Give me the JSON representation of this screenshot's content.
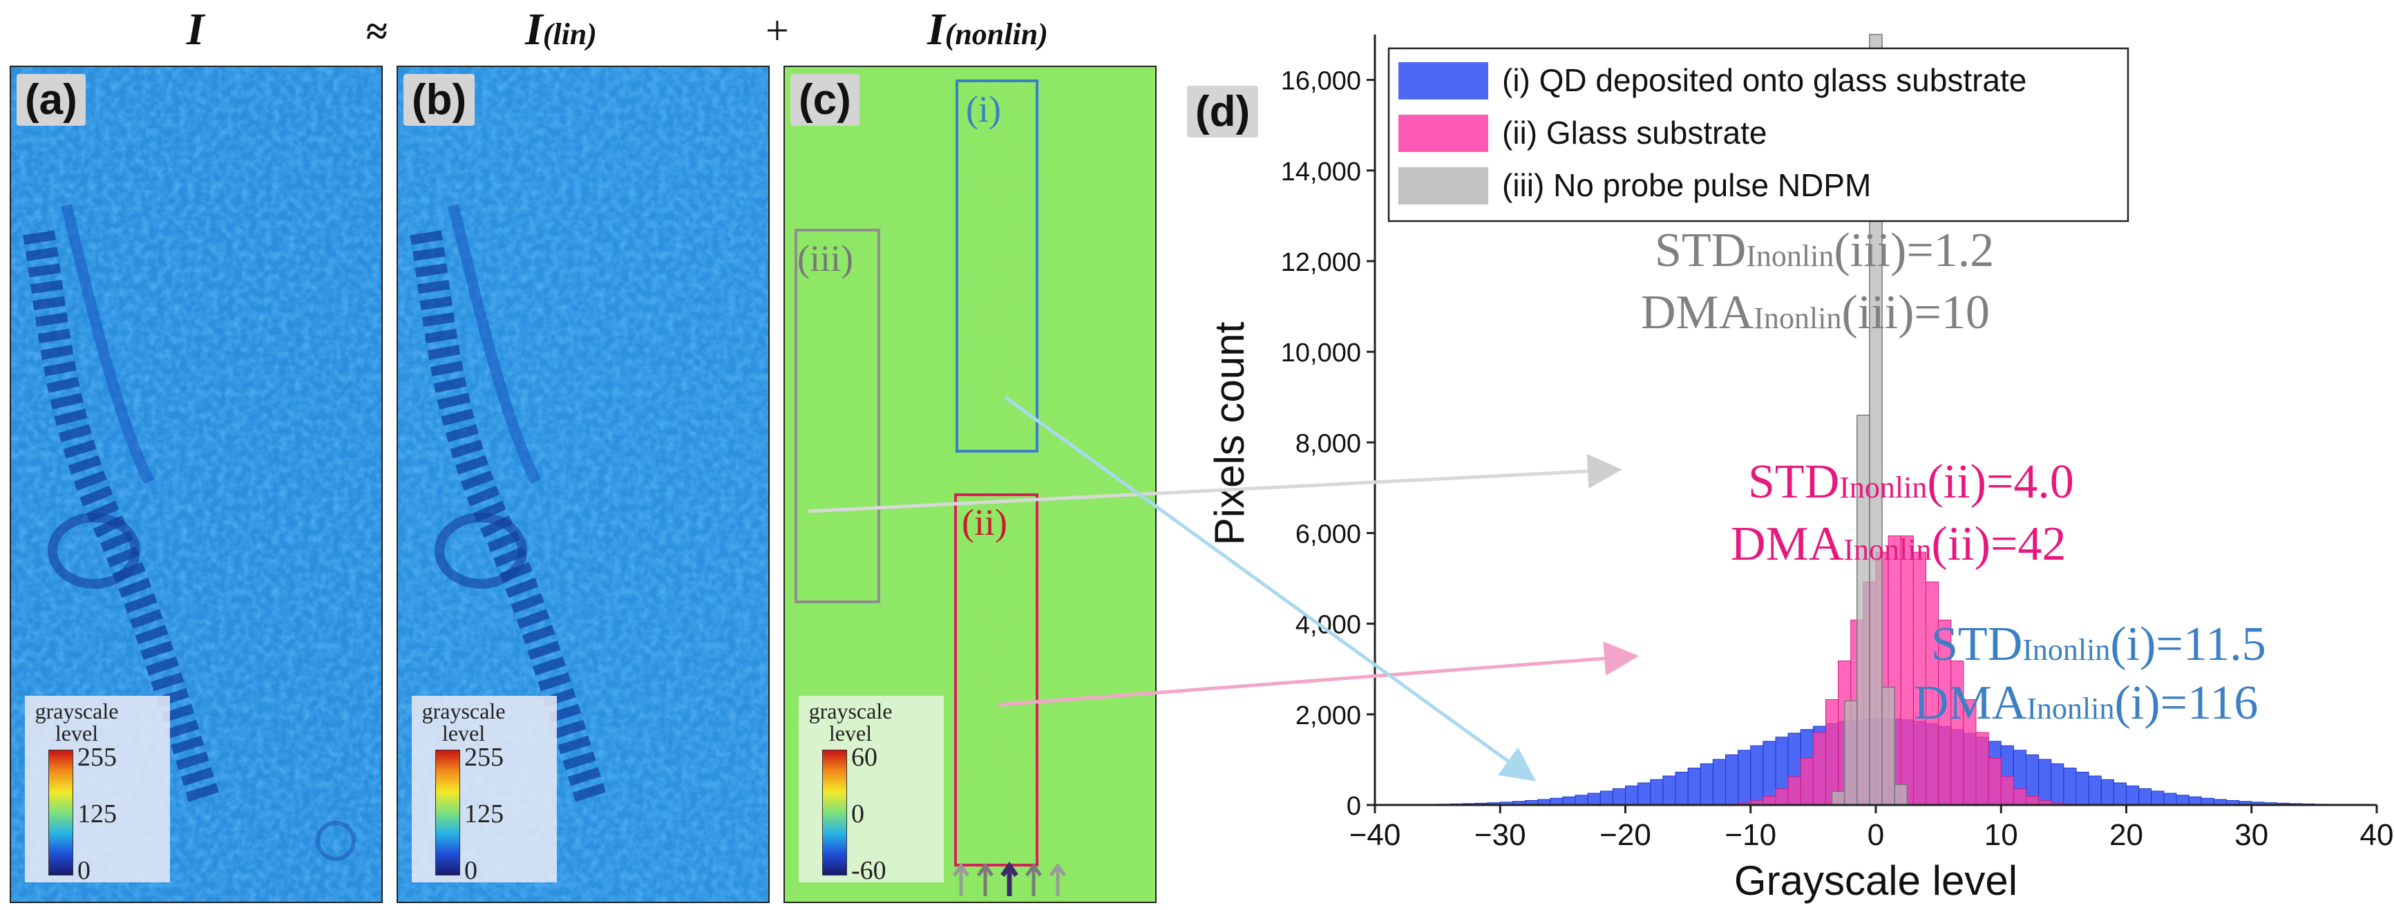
{
  "equation": {
    "term_I": "I",
    "approx": "≈",
    "term_lin_main": "I",
    "term_lin_sub": "(lin)",
    "plus": "+",
    "term_nonlin_main": "I",
    "term_nonlin_sub": "(nonlin)"
  },
  "panels": {
    "a": {
      "label": "(a)",
      "colorbar": {
        "title_line1": "grayscale",
        "title_line2": "level",
        "ticks": [
          "255",
          "125",
          "0"
        ]
      }
    },
    "b": {
      "label": "(b)",
      "colorbar": {
        "title_line1": "grayscale",
        "title_line2": "level",
        "ticks": [
          "255",
          "125",
          "0"
        ]
      }
    },
    "c": {
      "label": "(c)",
      "colorbar": {
        "title_line1": "grayscale",
        "title_line2": "level",
        "ticks": [
          "60",
          "0",
          "-60"
        ]
      },
      "roi_labels": [
        "(i)",
        "(ii)",
        "(iii)"
      ]
    },
    "d": {
      "label": "(d)"
    }
  },
  "colors": {
    "series_i": "#2f4ef5",
    "series_ii": "#ff3da6",
    "series_iii": "#b8b8b8",
    "annot_i": "#3b7fc4",
    "annot_ii": "#e6187e",
    "annot_iii": "#808080",
    "nonlin_bg": "#8ee866",
    "lin_bg": "#2f93e0"
  },
  "chart_data": {
    "type": "bar",
    "subtype": "histogram",
    "title": "",
    "xlabel": "Grayscale level",
    "ylabel": "Pixels count",
    "xlim": [
      -40,
      40
    ],
    "ylim": [
      0,
      17000
    ],
    "xticks": [
      "−40",
      "−30",
      "−20",
      "−10",
      "0",
      "10",
      "20",
      "30",
      "40"
    ],
    "xtick_values": [
      -40,
      -30,
      -20,
      -10,
      0,
      10,
      20,
      30,
      40
    ],
    "yticks": [
      "0",
      "2,000",
      "4,000",
      "6,000",
      "8,000",
      "10,000",
      "12,000",
      "14,000",
      "16,000"
    ],
    "ytick_values": [
      0,
      2000,
      4000,
      6000,
      8000,
      10000,
      12000,
      14000,
      16000
    ],
    "bin_width": 1,
    "legend_position": "top-left",
    "series": [
      {
        "name": "(i)  QD deposited onto glass substrate",
        "std": 11.5,
        "mean": 0.5,
        "total": 55000
      },
      {
        "name": "(ii)  Glass substrate",
        "std": 4.0,
        "mean": 2,
        "total": 60000
      },
      {
        "name": "(iii)  No probe pulse NDPM",
        "bins": {
          "-3": 300,
          "-2": 2300,
          "-1": 8600,
          "0": 17000,
          "1": 2600,
          "2": 450
        }
      }
    ],
    "annotations": {
      "iii_std": {
        "prefix": "STD",
        "sub": "Inonlin",
        "suffix": "(iii)=1.2"
      },
      "iii_dma": {
        "prefix": "DMA",
        "sub": "Inonlin",
        "suffix": "(iii)=10"
      },
      "ii_std": {
        "prefix": "STD",
        "sub": "Inonlin",
        "suffix": "(ii)=4.0"
      },
      "ii_dma": {
        "prefix": "DMA",
        "sub": "Inonlin",
        "suffix": "(ii)=42"
      },
      "i_std": {
        "prefix": "STD",
        "sub": "Inonlin",
        "suffix": "(i)=11.5"
      },
      "i_dma": {
        "prefix": "DMA",
        "sub": "Inonlin",
        "suffix": "(i)=116"
      }
    }
  }
}
